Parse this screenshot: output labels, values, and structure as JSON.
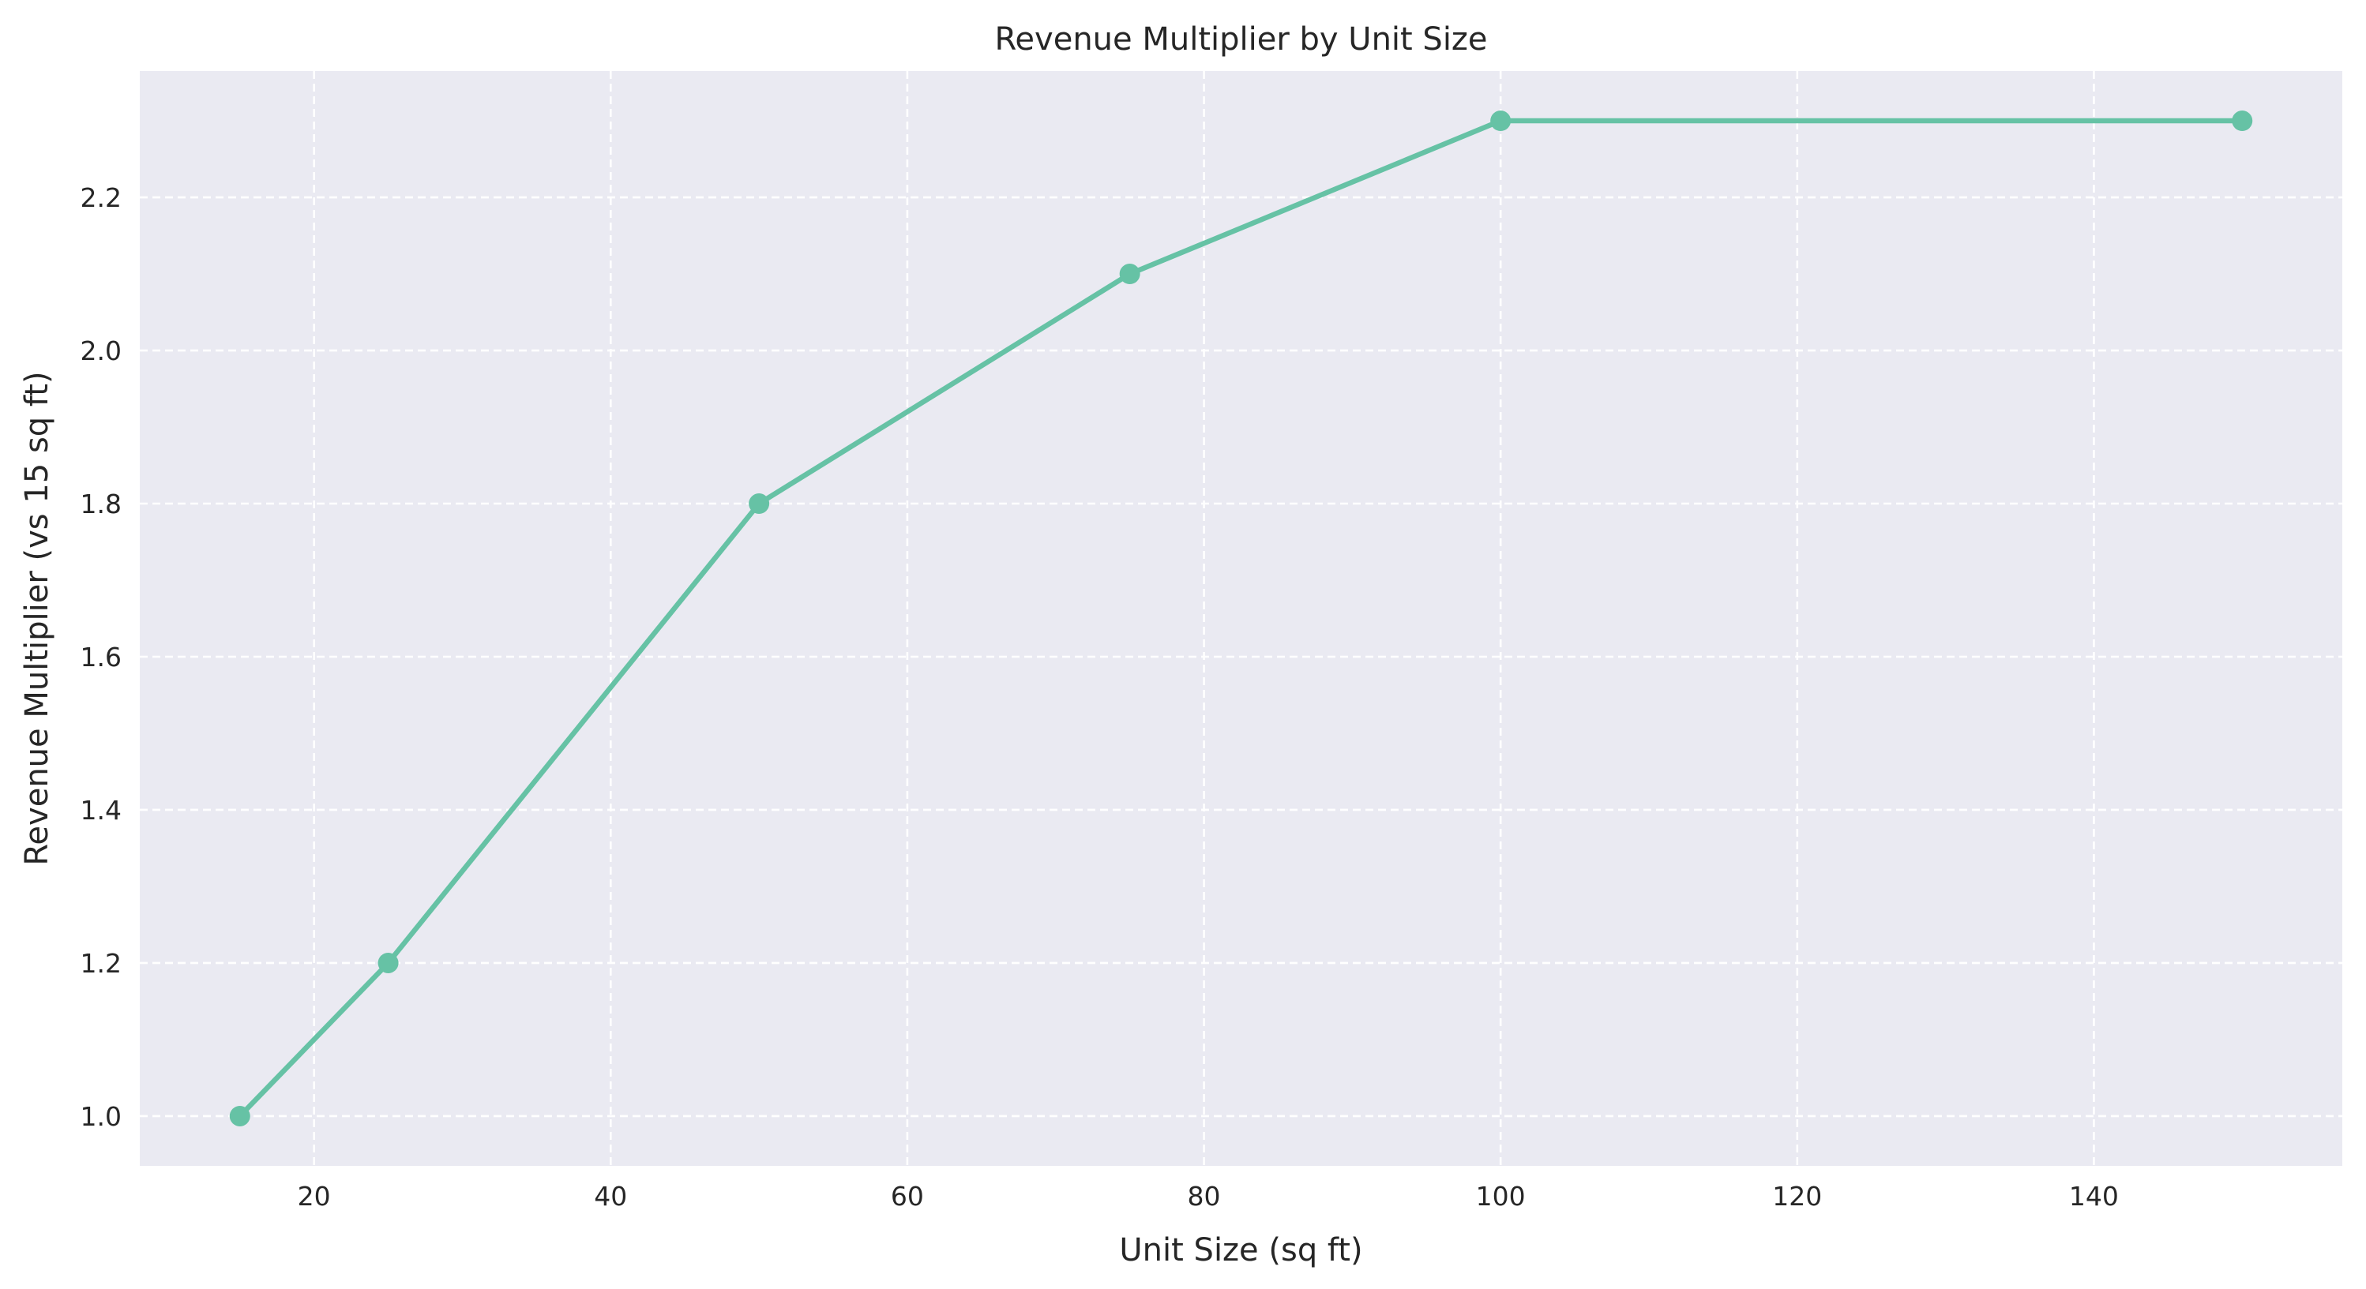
{
  "chart_data": {
    "type": "line",
    "title": "Revenue Multiplier by Unit Size",
    "xlabel": "Unit Size (sq ft)",
    "ylabel": "Revenue Multiplier (vs 15 sq ft)",
    "xlim": [
      8.25,
      156.75
    ],
    "ylim": [
      0.935,
      2.365
    ],
    "xticks": [
      20,
      40,
      60,
      80,
      100,
      120,
      140
    ],
    "yticks": [
      1.0,
      1.2,
      1.4,
      1.6,
      1.8,
      2.0,
      2.2
    ],
    "xtick_labels": [
      "20",
      "40",
      "60",
      "80",
      "100",
      "120",
      "140"
    ],
    "ytick_labels": [
      "1.0",
      "1.2",
      "1.4",
      "1.6",
      "1.8",
      "2.0",
      "2.2"
    ],
    "grid": true,
    "legend": "none",
    "series": [
      {
        "x": [
          15,
          25,
          50,
          75,
          100,
          150
        ],
        "values": [
          1.0,
          1.2,
          1.8,
          2.1,
          2.3,
          2.3
        ],
        "color": "#66c2a5",
        "marker": "circle"
      }
    ],
    "background_color": "#eaeaf2"
  }
}
